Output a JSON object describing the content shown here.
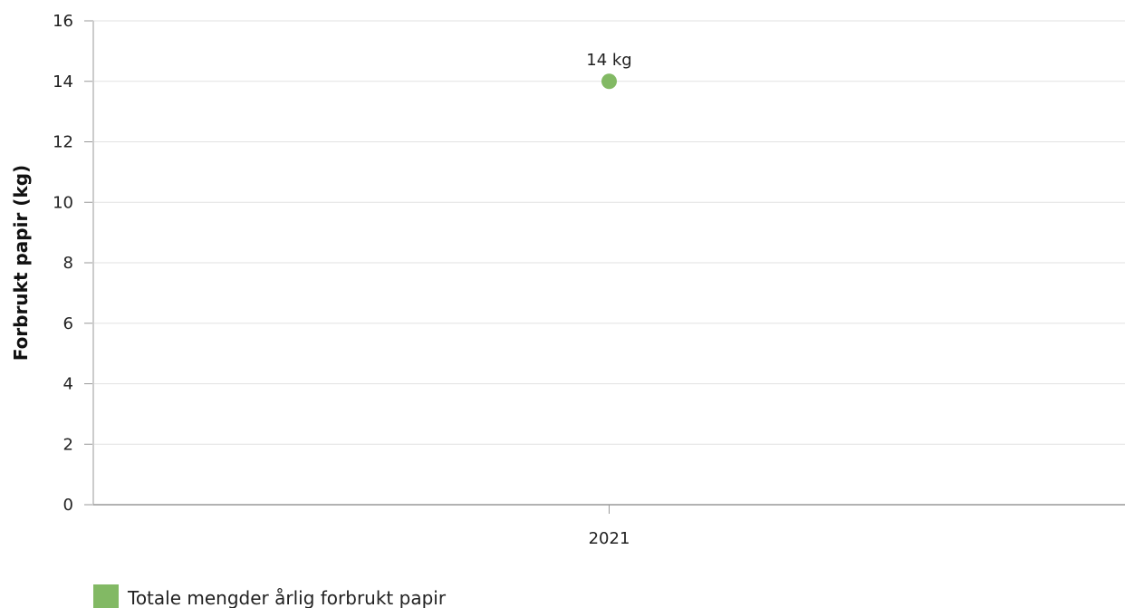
{
  "chart_data": {
    "type": "scatter",
    "categories": [
      "2021"
    ],
    "series": [
      {
        "name": "Totale mengder årlig forbrukt papir",
        "values": [
          14
        ],
        "data_labels": [
          "14 kg"
        ],
        "color": "#82b964"
      }
    ],
    "ylabel": "Forbrukt papir (kg)",
    "ylim": [
      0,
      16
    ],
    "yticks": [
      "0",
      "2",
      "4",
      "6",
      "8",
      "10",
      "12",
      "14",
      "16"
    ],
    "grid": true,
    "legend_position": "bottom-left"
  },
  "colors": {
    "series": "#82b964",
    "grid": "#e2e2e2",
    "axis": "#999999"
  }
}
